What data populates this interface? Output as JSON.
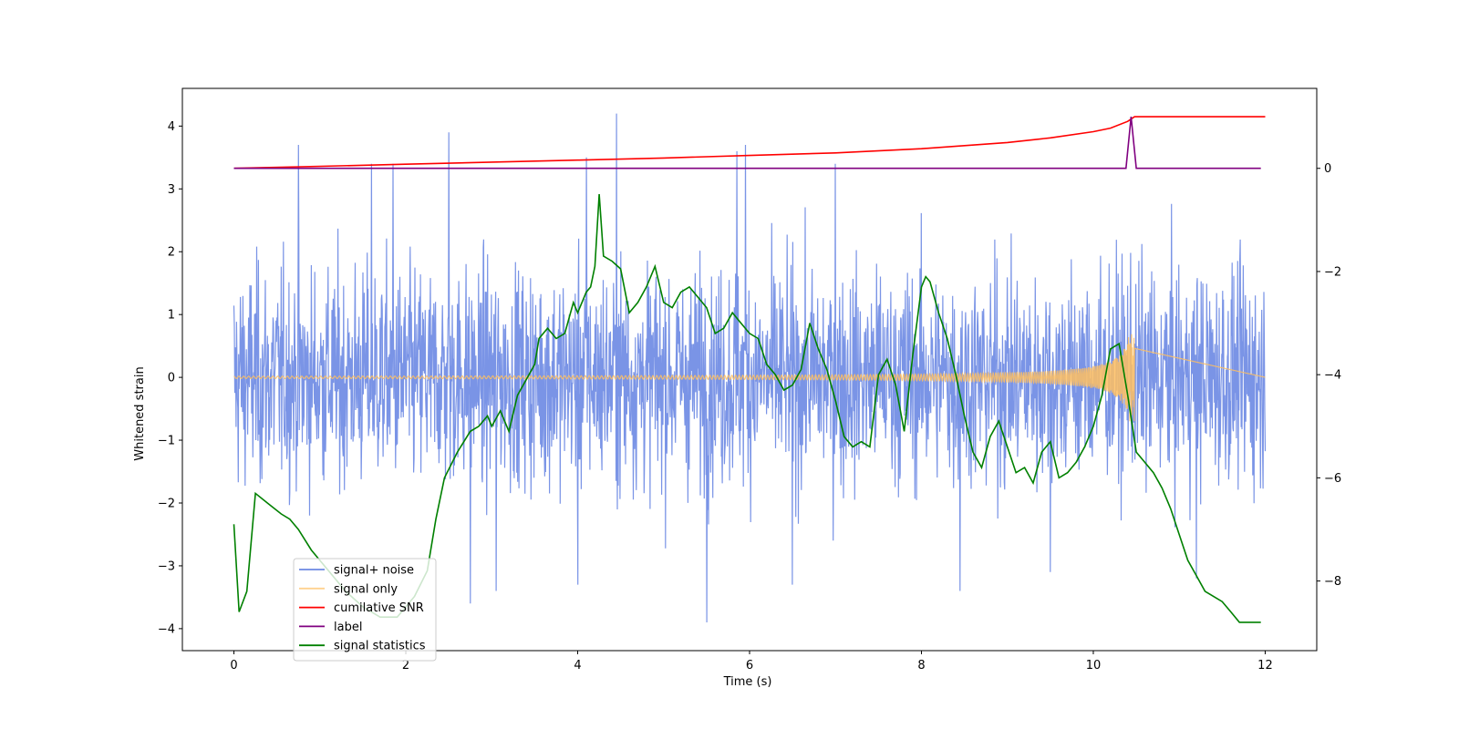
{
  "chart_data": {
    "type": "line",
    "title": "",
    "xlabel": "Time (s)",
    "ylabel": "Whitened strain",
    "y2label": "",
    "xlim": [
      -0.6,
      12.6
    ],
    "ylim": [
      -4.35,
      4.6
    ],
    "y2lim": [
      -9.35,
      1.55
    ],
    "xticks": [
      0,
      2,
      4,
      6,
      8,
      10,
      12
    ],
    "yticks": [
      -4,
      -3,
      -2,
      -1,
      0,
      1,
      2,
      3,
      4
    ],
    "y2ticks": [
      -8,
      -6,
      -4,
      -2,
      0
    ],
    "grid": false,
    "legend_position": "lower-left",
    "series": [
      {
        "name": "signal+ noise",
        "color": "#6b88e3",
        "axis": "left",
        "description_kind": "noise",
        "x_range": [
          0,
          12
        ],
        "typical_range": [
          -2.3,
          2.6
        ],
        "spikes": [
          {
            "x": 0.75,
            "y": 3.7
          },
          {
            "x": 1.6,
            "y": 3.4
          },
          {
            "x": 1.85,
            "y": 3.4
          },
          {
            "x": 2.5,
            "y": 3.9
          },
          {
            "x": 4.1,
            "y": 3.5
          },
          {
            "x": 4.45,
            "y": 4.2
          },
          {
            "x": 5.85,
            "y": 3.6
          },
          {
            "x": 5.95,
            "y": 3.7
          },
          {
            "x": 7.0,
            "y": 3.4
          },
          {
            "x": 5.5,
            "y": -3.9
          },
          {
            "x": 8.45,
            "y": -3.4
          },
          {
            "x": 2.75,
            "y": -3.6
          },
          {
            "x": 3.05,
            "y": -3.4
          },
          {
            "x": 4.0,
            "y": -3.3
          },
          {
            "x": 6.5,
            "y": -3.3
          },
          {
            "x": 9.5,
            "y": -3.1
          },
          {
            "x": 11.2,
            "y": -3.2
          }
        ]
      },
      {
        "name": "signal only",
        "color": "#ffc060",
        "axis": "left",
        "description_kind": "chirp",
        "x_range": [
          0,
          10.48
        ],
        "peak_amplitude": 0.7
      },
      {
        "name": "cumilative SNR",
        "color": "#ff0000",
        "axis": "right",
        "x": [
          0,
          1,
          2,
          3,
          4,
          5,
          6,
          7,
          8,
          9,
          9.5,
          10,
          10.2,
          10.4,
          10.48,
          11,
          12
        ],
        "y": [
          0,
          0.04,
          0.08,
          0.12,
          0.16,
          0.2,
          0.25,
          0.3,
          0.38,
          0.5,
          0.59,
          0.71,
          0.78,
          0.91,
          1.0,
          1.0,
          1.0
        ]
      },
      {
        "name": "label",
        "color": "#800080",
        "axis": "right",
        "x": [
          0,
          10.38,
          10.44,
          10.5,
          11.95
        ],
        "y": [
          0,
          0,
          1.0,
          0,
          0
        ]
      },
      {
        "name": "signal statistics",
        "color": "#008000",
        "axis": "right",
        "x": [
          0,
          0.06,
          0.15,
          0.25,
          0.4,
          0.55,
          0.65,
          0.75,
          0.9,
          1.1,
          1.3,
          1.5,
          1.7,
          1.9,
          2.1,
          2.25,
          2.35,
          2.45,
          2.6,
          2.75,
          2.85,
          2.95,
          3.0,
          3.1,
          3.2,
          3.3,
          3.4,
          3.5,
          3.55,
          3.65,
          3.75,
          3.85,
          3.95,
          4.0,
          4.05,
          4.1,
          4.15,
          4.2,
          4.25,
          4.3,
          4.4,
          4.5,
          4.6,
          4.7,
          4.8,
          4.9,
          5.0,
          5.1,
          5.2,
          5.3,
          5.4,
          5.5,
          5.6,
          5.7,
          5.8,
          5.9,
          6.0,
          6.1,
          6.2,
          6.3,
          6.4,
          6.5,
          6.6,
          6.7,
          6.8,
          6.9,
          7.0,
          7.1,
          7.2,
          7.3,
          7.4,
          7.5,
          7.6,
          7.7,
          7.8,
          7.9,
          8.0,
          8.05,
          8.1,
          8.2,
          8.3,
          8.4,
          8.5,
          8.6,
          8.7,
          8.8,
          8.9,
          9.0,
          9.1,
          9.2,
          9.3,
          9.4,
          9.5,
          9.6,
          9.7,
          9.8,
          9.9,
          10.0,
          10.1,
          10.2,
          10.3,
          10.4,
          10.5,
          10.6,
          10.7,
          10.8,
          10.9,
          11.0,
          11.1,
          11.2,
          11.3,
          11.4,
          11.5,
          11.6,
          11.7,
          11.8,
          11.9,
          11.95
        ],
        "y": [
          -6.9,
          -8.6,
          -8.2,
          -6.3,
          -6.5,
          -6.7,
          -6.8,
          -7.0,
          -7.4,
          -7.8,
          -8.2,
          -8.5,
          -8.7,
          -8.7,
          -8.3,
          -7.8,
          -6.8,
          -6.0,
          -5.5,
          -5.1,
          -5.0,
          -4.8,
          -5.0,
          -4.7,
          -5.1,
          -4.4,
          -4.1,
          -3.8,
          -3.3,
          -3.1,
          -3.3,
          -3.2,
          -2.6,
          -2.8,
          -2.6,
          -2.4,
          -2.3,
          -1.9,
          -0.5,
          -1.7,
          -1.8,
          -1.95,
          -2.8,
          -2.6,
          -2.3,
          -1.9,
          -2.6,
          -2.7,
          -2.4,
          -2.3,
          -2.5,
          -2.7,
          -3.2,
          -3.1,
          -2.8,
          -3.0,
          -3.2,
          -3.3,
          -3.8,
          -4.0,
          -4.3,
          -4.2,
          -3.9,
          -3.0,
          -3.5,
          -3.9,
          -4.5,
          -5.2,
          -5.4,
          -5.3,
          -5.4,
          -4.0,
          -3.7,
          -4.2,
          -5.1,
          -3.6,
          -2.3,
          -2.1,
          -2.2,
          -2.8,
          -3.3,
          -4.0,
          -4.8,
          -5.5,
          -5.8,
          -5.2,
          -4.9,
          -5.4,
          -5.9,
          -5.8,
          -6.1,
          -5.5,
          -5.3,
          -6.0,
          -5.9,
          -5.7,
          -5.4,
          -5.0,
          -4.4,
          -3.5,
          -3.4,
          -4.4,
          -5.5,
          -5.7,
          -5.9,
          -6.2,
          -6.6,
          -7.1,
          -7.6,
          -7.9,
          -8.2,
          -8.3,
          -8.4,
          -8.6,
          -8.8,
          -8.8,
          -8.8,
          -8.8
        ]
      }
    ]
  }
}
